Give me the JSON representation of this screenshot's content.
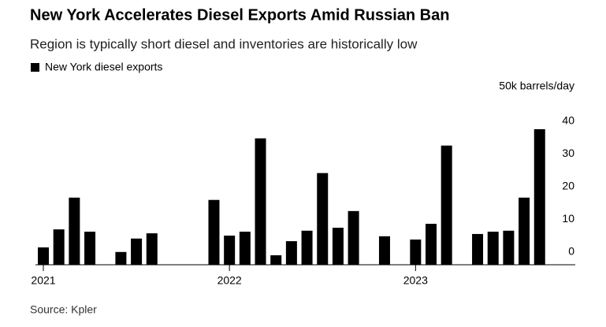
{
  "chart_data": {
    "type": "bar",
    "title": "New York Accelerates Diesel Exports Amid Russian Ban",
    "subtitle": "Region is typically short diesel and inventories are historically low",
    "y_axis_label": "50k barrels/day",
    "source": "Source: Kpler",
    "categories": [
      "2021",
      null,
      null,
      null,
      null,
      null,
      null,
      null,
      null,
      null,
      null,
      null,
      "2022",
      null,
      null,
      null,
      null,
      null,
      null,
      null,
      null,
      null,
      null,
      null,
      "2023",
      null,
      null,
      null,
      null,
      null,
      null,
      null,
      null
    ],
    "series": [
      {
        "name": "New York diesel exports",
        "color": "#000000",
        "values": [
          5.3,
          10.8,
          20.5,
          10.1,
          0,
          3.9,
          8,
          9.6,
          0,
          0,
          0,
          19.8,
          8.9,
          10.1,
          38.6,
          2.9,
          7.2,
          10.4,
          28,
          11.3,
          16.4,
          0,
          8.7,
          0,
          7.7,
          12.5,
          36.4,
          0,
          9.4,
          10.1,
          10.4,
          20.5,
          41.4
        ]
      }
    ],
    "ylim": [
      0,
      45
    ],
    "yticks": [
      0,
      10,
      20,
      30,
      40
    ],
    "grid": false,
    "legend": "top-left"
  }
}
